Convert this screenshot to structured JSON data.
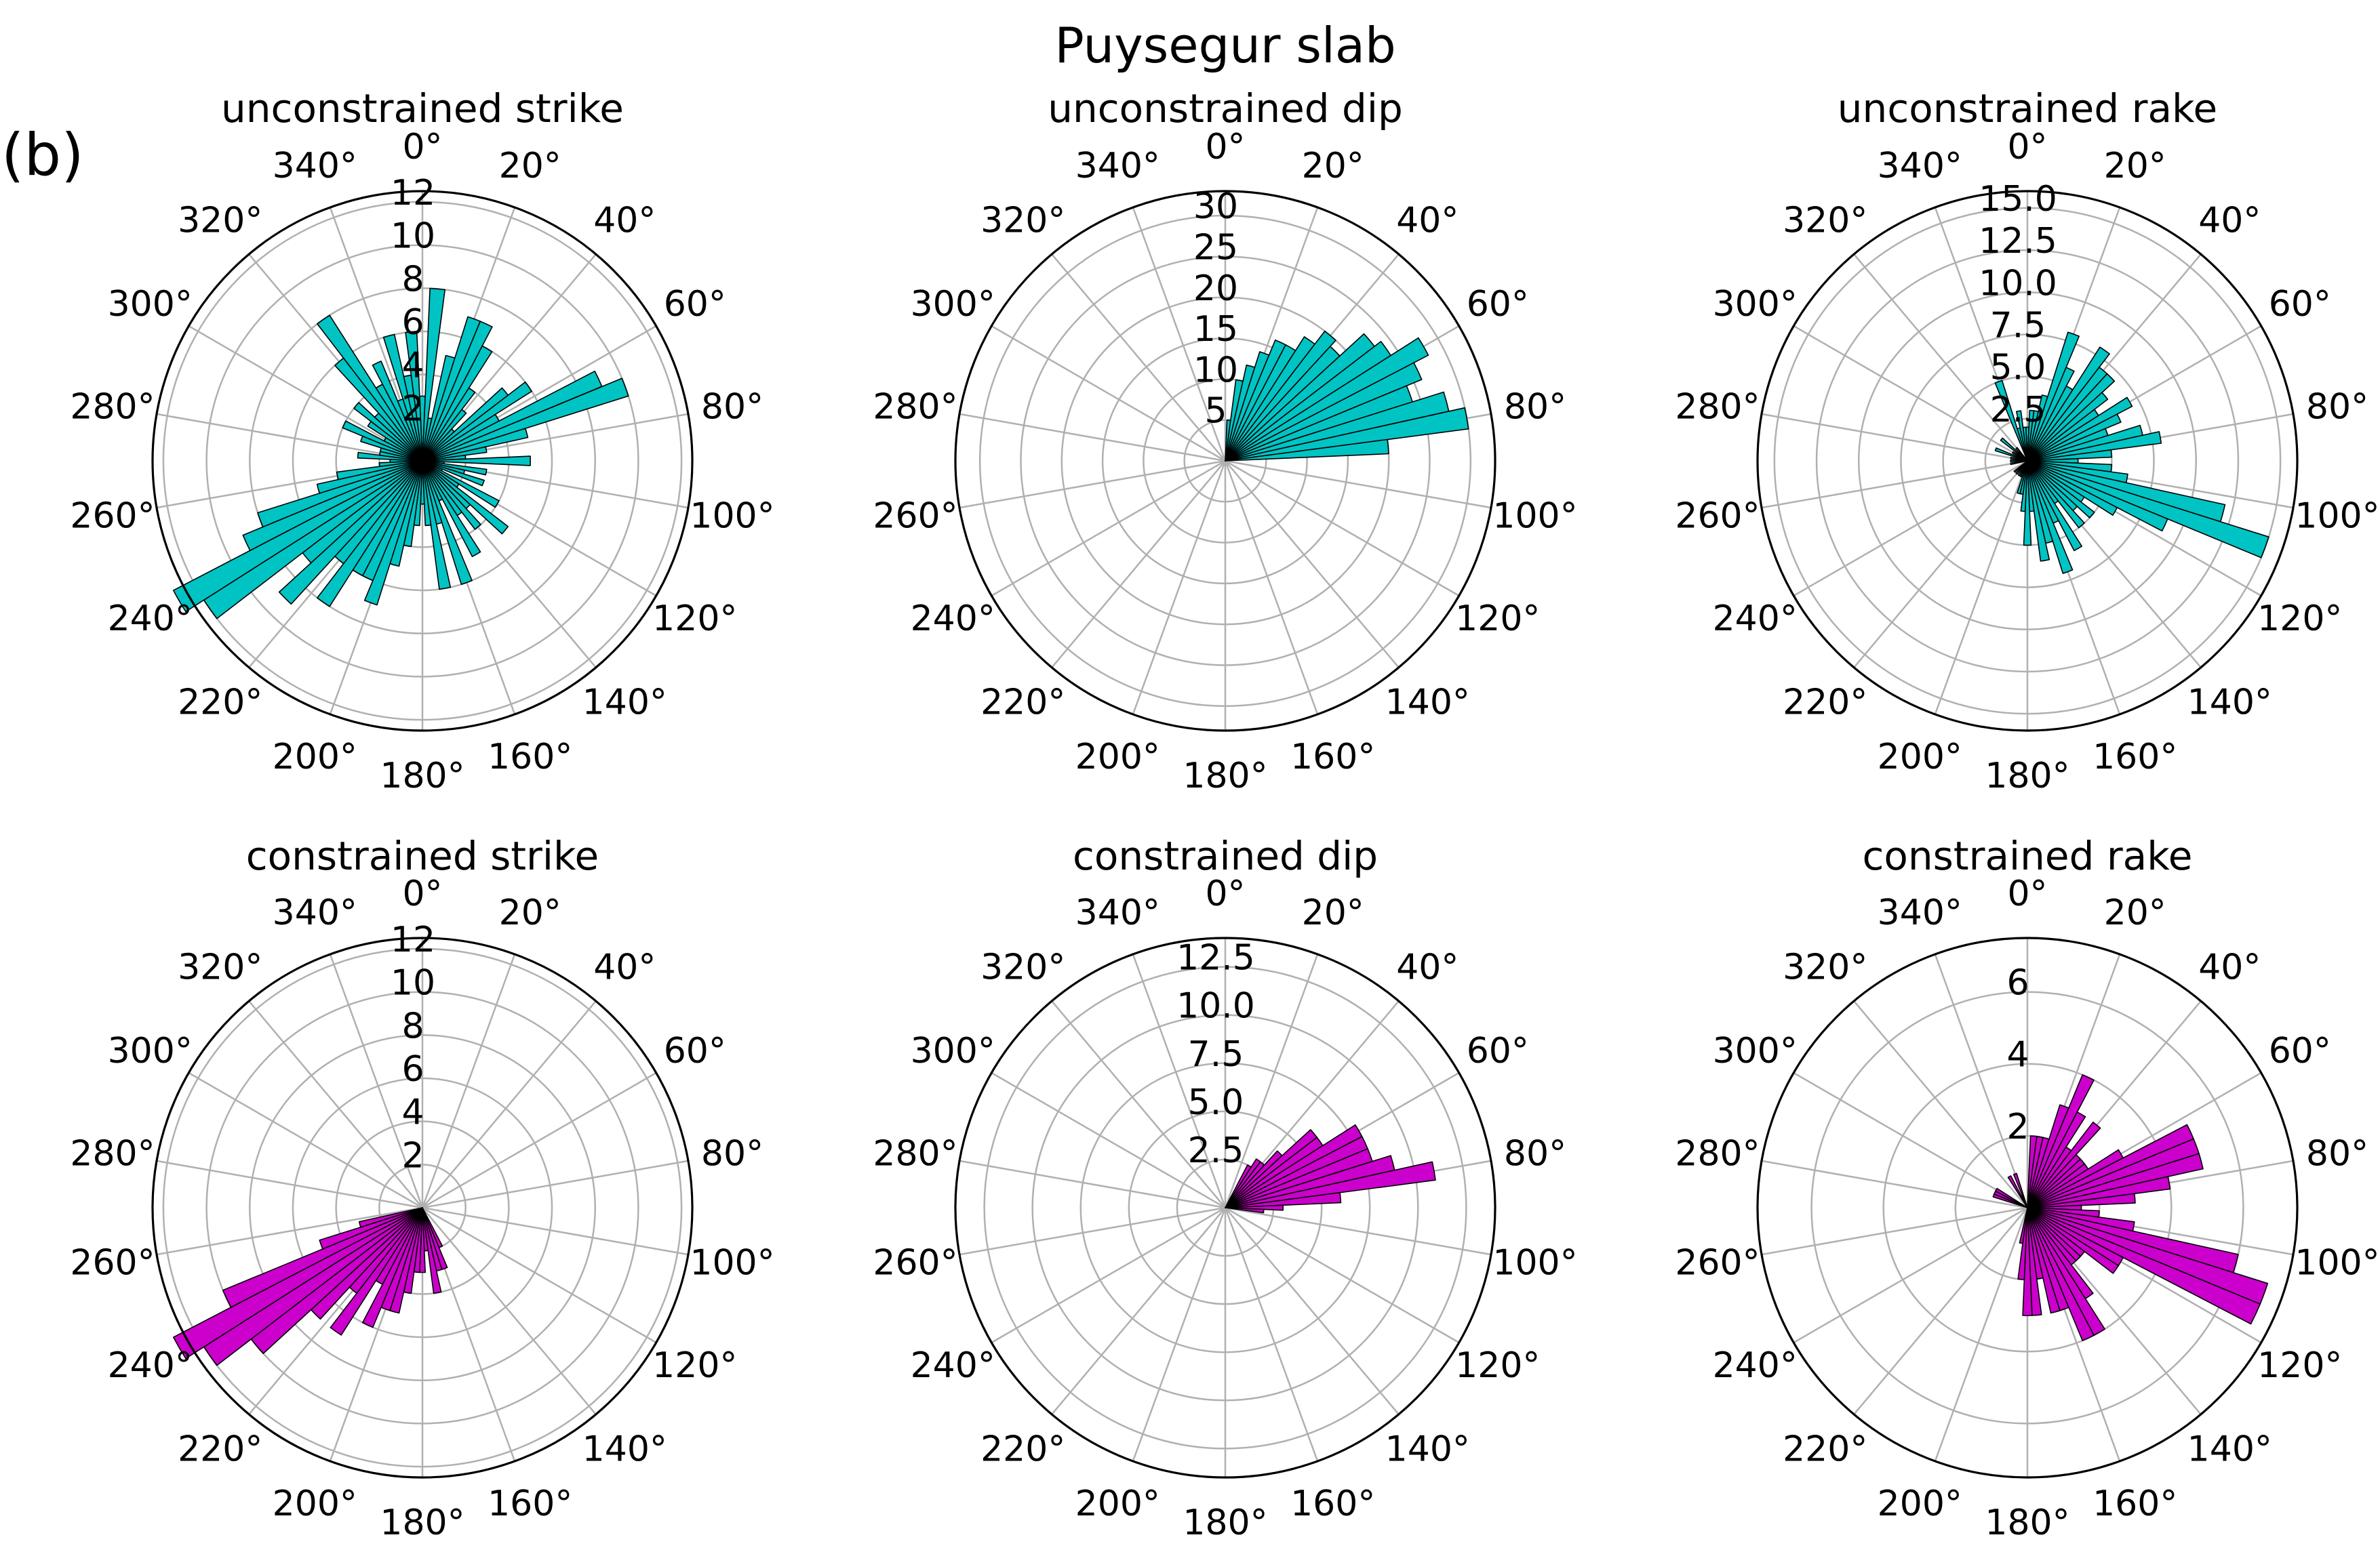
{
  "figure": {
    "title": "Puysegur slab",
    "panel_label": "(b)"
  },
  "angle_ticks": [
    "0°",
    "20°",
    "40°",
    "60°",
    "80°",
    "100°",
    "120°",
    "140°",
    "160°",
    "180°",
    "200°",
    "220°",
    "240°",
    "260°",
    "280°",
    "300°",
    "320°",
    "340°"
  ],
  "colors": {
    "unconstrained": "#00c4c4",
    "constrained": "#cc00cc",
    "grid": "#b0b0b0",
    "edge": "#000000"
  },
  "chart_data": [
    {
      "type": "bar",
      "subtype": "polar-rose",
      "title": "unconstrained strike",
      "color": "#00c4c4",
      "rmax": 12.5,
      "rticks": [
        2,
        4,
        6,
        8,
        10,
        12
      ],
      "rtick_labels": [
        "2",
        "4",
        "6",
        "8",
        "10",
        "12"
      ],
      "bin_width_deg": 5,
      "bins": [
        [
          0,
          3
        ],
        [
          5,
          8
        ],
        [
          10,
          2
        ],
        [
          15,
          5
        ],
        [
          20,
          7
        ],
        [
          25,
          7
        ],
        [
          30,
          6
        ],
        [
          35,
          4
        ],
        [
          40,
          3
        ],
        [
          45,
          2
        ],
        [
          50,
          5
        ],
        [
          55,
          6
        ],
        [
          60,
          4
        ],
        [
          65,
          9
        ],
        [
          70,
          10
        ],
        [
          75,
          5
        ],
        [
          80,
          3
        ],
        [
          85,
          2
        ],
        [
          90,
          5
        ],
        [
          95,
          1
        ],
        [
          100,
          3
        ],
        [
          105,
          2
        ],
        [
          110,
          3
        ],
        [
          115,
          1
        ],
        [
          120,
          4
        ],
        [
          125,
          2
        ],
        [
          130,
          5
        ],
        [
          135,
          3
        ],
        [
          140,
          4
        ],
        [
          145,
          3
        ],
        [
          150,
          5
        ],
        [
          155,
          2
        ],
        [
          160,
          6
        ],
        [
          165,
          3
        ],
        [
          170,
          6
        ],
        [
          175,
          3
        ],
        [
          180,
          2
        ],
        [
          185,
          3
        ],
        [
          190,
          4
        ],
        [
          195,
          5
        ],
        [
          200,
          7
        ],
        [
          205,
          6
        ],
        [
          210,
          6
        ],
        [
          215,
          8
        ],
        [
          220,
          6
        ],
        [
          225,
          9
        ],
        [
          230,
          7
        ],
        [
          235,
          12
        ],
        [
          240,
          13
        ],
        [
          245,
          9
        ],
        [
          250,
          8
        ],
        [
          255,
          5
        ],
        [
          260,
          4
        ],
        [
          265,
          2
        ],
        [
          270,
          1.5
        ],
        [
          275,
          3
        ],
        [
          280,
          2
        ],
        [
          285,
          2
        ],
        [
          290,
          3
        ],
        [
          295,
          4
        ],
        [
          300,
          2
        ],
        [
          305,
          3
        ],
        [
          310,
          4
        ],
        [
          315,
          3
        ],
        [
          320,
          6
        ],
        [
          325,
          8
        ],
        [
          330,
          4
        ],
        [
          335,
          5
        ],
        [
          340,
          3
        ],
        [
          345,
          6
        ],
        [
          350,
          4
        ],
        [
          355,
          6
        ]
      ]
    },
    {
      "type": "bar",
      "subtype": "polar-rose",
      "title": "unconstrained dip",
      "color": "#00c4c4",
      "rmax": 33,
      "rticks": [
        5,
        10,
        15,
        20,
        25,
        30
      ],
      "rtick_labels": [
        "5",
        "10",
        "15",
        "20",
        "25",
        "30"
      ],
      "bin_width_deg": 5,
      "bins": [
        [
          5,
          5
        ],
        [
          10,
          10
        ],
        [
          15,
          12
        ],
        [
          20,
          14
        ],
        [
          25,
          16
        ],
        [
          30,
          16
        ],
        [
          35,
          18
        ],
        [
          40,
          20
        ],
        [
          45,
          19
        ],
        [
          50,
          23
        ],
        [
          55,
          24
        ],
        [
          60,
          28
        ],
        [
          65,
          26
        ],
        [
          70,
          24
        ],
        [
          75,
          28
        ],
        [
          80,
          30
        ],
        [
          85,
          20
        ]
      ]
    },
    {
      "type": "bar",
      "subtype": "polar-rose",
      "title": "unconstrained rake",
      "color": "#00c4c4",
      "rmax": 16,
      "rticks": [
        2.5,
        5.0,
        7.5,
        10.0,
        12.5,
        15.0
      ],
      "rtick_labels": [
        "2.5",
        "5.0",
        "7.5",
        "10.0",
        "12.5",
        "15.0"
      ],
      "bin_width_deg": 5,
      "bins": [
        [
          0,
          2
        ],
        [
          5,
          3
        ],
        [
          10,
          3
        ],
        [
          15,
          4
        ],
        [
          20,
          8
        ],
        [
          25,
          6
        ],
        [
          30,
          5
        ],
        [
          35,
          8
        ],
        [
          40,
          7
        ],
        [
          45,
          7
        ],
        [
          50,
          6
        ],
        [
          55,
          5
        ],
        [
          60,
          7
        ],
        [
          65,
          6
        ],
        [
          70,
          5
        ],
        [
          75,
          7
        ],
        [
          80,
          8
        ],
        [
          85,
          5
        ],
        [
          90,
          3
        ],
        [
          95,
          5
        ],
        [
          100,
          6
        ],
        [
          105,
          12
        ],
        [
          110,
          15
        ],
        [
          115,
          9
        ],
        [
          120,
          6
        ],
        [
          125,
          4
        ],
        [
          130,
          5
        ],
        [
          135,
          4
        ],
        [
          140,
          5
        ],
        [
          145,
          3
        ],
        [
          150,
          6
        ],
        [
          155,
          4
        ],
        [
          160,
          7
        ],
        [
          165,
          5
        ],
        [
          170,
          6
        ],
        [
          175,
          3
        ],
        [
          180,
          5
        ],
        [
          185,
          3
        ],
        [
          190,
          2
        ],
        [
          195,
          2
        ],
        [
          200,
          1
        ],
        [
          205,
          1
        ],
        [
          210,
          1
        ],
        [
          220,
          1
        ],
        [
          230,
          1
        ],
        [
          260,
          1
        ],
        [
          270,
          1
        ],
        [
          280,
          1
        ],
        [
          290,
          2
        ],
        [
          300,
          1
        ],
        [
          310,
          2
        ],
        [
          320,
          1
        ],
        [
          340,
          5
        ],
        [
          345,
          2
        ],
        [
          350,
          3
        ],
        [
          355,
          2
        ]
      ]
    },
    {
      "type": "bar",
      "subtype": "polar-rose",
      "title": "constrained strike",
      "color": "#cc00cc",
      "rmax": 12.5,
      "rticks": [
        2,
        4,
        6,
        8,
        10,
        12
      ],
      "rtick_labels": [
        "2",
        "4",
        "6",
        "8",
        "10",
        "12"
      ],
      "bin_width_deg": 5,
      "bins": [
        [
          155,
          2
        ],
        [
          160,
          3
        ],
        [
          165,
          3
        ],
        [
          170,
          4
        ],
        [
          175,
          2
        ],
        [
          180,
          3
        ],
        [
          185,
          3
        ],
        [
          190,
          4
        ],
        [
          195,
          5
        ],
        [
          200,
          5
        ],
        [
          205,
          6
        ],
        [
          210,
          4
        ],
        [
          215,
          7
        ],
        [
          220,
          5
        ],
        [
          225,
          7
        ],
        [
          230,
          10
        ],
        [
          235,
          12
        ],
        [
          240,
          13
        ],
        [
          245,
          10
        ],
        [
          250,
          5
        ],
        [
          255,
          3
        ]
      ]
    },
    {
      "type": "bar",
      "subtype": "polar-rose",
      "title": "constrained dip",
      "color": "#cc00cc",
      "rmax": 14,
      "rticks": [
        2.5,
        5.0,
        7.5,
        10.0,
        12.5
      ],
      "rtick_labels": [
        "2.5",
        "5.0",
        "7.5",
        "10.0",
        "12.5"
      ],
      "bin_width_deg": 5,
      "bins": [
        [
          30,
          2.5
        ],
        [
          35,
          3
        ],
        [
          40,
          3
        ],
        [
          45,
          4
        ],
        [
          50,
          6
        ],
        [
          55,
          6
        ],
        [
          60,
          8
        ],
        [
          65,
          8
        ],
        [
          70,
          8
        ],
        [
          75,
          9
        ],
        [
          80,
          11
        ],
        [
          85,
          6
        ],
        [
          90,
          3
        ],
        [
          95,
          2
        ]
      ]
    },
    {
      "type": "bar",
      "subtype": "polar-rose",
      "title": "constrained rake",
      "color": "#cc00cc",
      "rmax": 7.5,
      "rticks": [
        2,
        4,
        6
      ],
      "rtick_labels": [
        "2",
        "4",
        "6"
      ],
      "bin_width_deg": 5,
      "bins": [
        [
          5,
          2
        ],
        [
          10,
          2
        ],
        [
          15,
          2
        ],
        [
          20,
          3
        ],
        [
          25,
          4
        ],
        [
          30,
          3
        ],
        [
          35,
          2
        ],
        [
          40,
          3
        ],
        [
          45,
          2
        ],
        [
          50,
          2
        ],
        [
          55,
          2
        ],
        [
          60,
          3
        ],
        [
          65,
          5
        ],
        [
          70,
          5
        ],
        [
          75,
          5
        ],
        [
          80,
          4
        ],
        [
          85,
          3
        ],
        [
          90,
          1.5
        ],
        [
          95,
          2
        ],
        [
          100,
          3
        ],
        [
          105,
          6
        ],
        [
          110,
          7
        ],
        [
          115,
          7
        ],
        [
          120,
          3
        ],
        [
          125,
          3
        ],
        [
          130,
          2
        ],
        [
          135,
          2
        ],
        [
          140,
          2
        ],
        [
          145,
          3
        ],
        [
          150,
          4
        ],
        [
          155,
          4
        ],
        [
          160,
          3
        ],
        [
          165,
          3
        ],
        [
          170,
          2
        ],
        [
          175,
          3
        ],
        [
          180,
          3
        ],
        [
          185,
          2
        ],
        [
          190,
          1
        ],
        [
          290,
          1
        ],
        [
          295,
          1
        ],
        [
          300,
          1
        ],
        [
          330,
          1
        ],
        [
          340,
          1
        ]
      ]
    }
  ]
}
